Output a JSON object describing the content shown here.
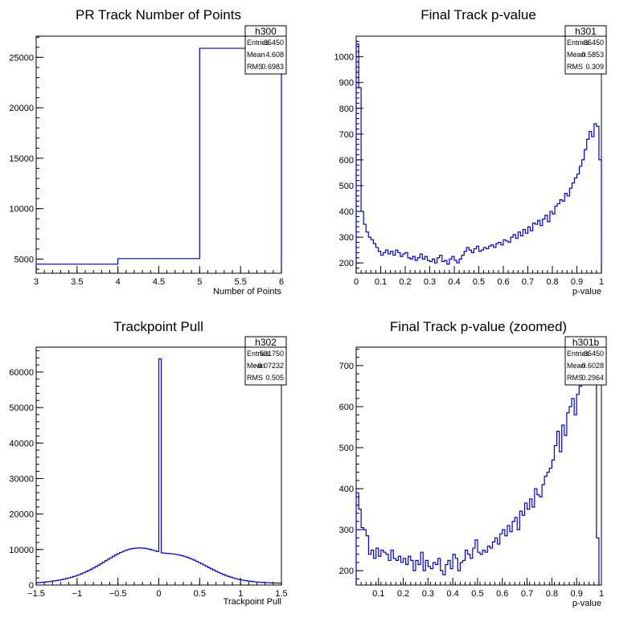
{
  "chart_data": [
    {
      "type": "histogram",
      "title": "PR Track Number of Points",
      "xlabel": "Number of Points",
      "ylabel": "",
      "xlim": [
        3,
        6
      ],
      "ylim": [
        3600,
        27100
      ],
      "xticks": [
        3,
        3.5,
        4,
        4.5,
        5,
        5.5,
        6
      ],
      "xtick_labels": [
        "3",
        "3.5",
        "4",
        "4.5",
        "5",
        "5.5",
        "6"
      ],
      "yticks": [
        5000,
        10000,
        15000,
        20000,
        25000
      ],
      "ytick_labels": [
        "5000",
        "10000",
        "15000",
        "20000",
        "25000"
      ],
      "bin_edges": [
        3,
        4,
        5,
        6
      ],
      "values": [
        4500,
        5050,
        25900
      ],
      "stats": {
        "name": "h300",
        "rows": [
          [
            "Entries",
            "35450"
          ],
          [
            "Mean",
            "4.608"
          ],
          [
            "RMS",
            "0.6983"
          ]
        ]
      }
    },
    {
      "type": "histogram",
      "title": "Final Track p-value",
      "xlabel": "p-value",
      "ylabel": "",
      "xlim": [
        0,
        1
      ],
      "ylim": [
        160,
        1080
      ],
      "xticks": [
        0,
        0.1,
        0.2,
        0.3,
        0.4,
        0.5,
        0.6,
        0.7,
        0.8,
        0.9,
        1
      ],
      "xtick_labels": [
        "0",
        "0.1",
        "0.2",
        "0.3",
        "0.4",
        "0.5",
        "0.6",
        "0.7",
        "0.8",
        "0.9",
        "1"
      ],
      "yticks": [
        200,
        300,
        400,
        500,
        600,
        700,
        800,
        900,
        1000
      ],
      "ytick_labels": [
        "200",
        "300",
        "400",
        "500",
        "600",
        "700",
        "800",
        "900",
        "1000"
      ],
      "bin_edges": [
        0,
        0.01
      ],
      "values": [
        1050,
        880,
        400,
        350,
        320,
        300,
        290,
        275,
        260,
        245,
        230,
        240,
        250,
        235,
        245,
        230,
        250,
        240,
        225,
        235,
        240,
        220,
        215,
        225,
        210,
        220,
        235,
        215,
        225,
        210,
        205,
        215,
        200,
        220,
        230,
        205,
        210,
        195,
        215,
        225,
        210,
        200,
        215,
        230,
        245,
        260,
        250,
        240,
        255,
        265,
        245,
        250,
        260,
        255,
        265,
        270,
        260,
        275,
        280,
        270,
        290,
        285,
        280,
        300,
        310,
        295,
        320,
        305,
        330,
        315,
        340,
        325,
        355,
        350,
        365,
        345,
        370,
        385,
        360,
        400,
        390,
        420,
        430,
        445,
        440,
        470,
        460,
        490,
        510,
        530,
        545,
        575,
        600,
        640,
        680,
        710,
        690,
        740,
        730,
        600
      ],
      "stats": {
        "name": "h301",
        "rows": [
          [
            "Entries",
            "35450"
          ],
          [
            "Mean",
            "0.5853"
          ],
          [
            "RMS",
            "0.309"
          ]
        ]
      }
    },
    {
      "type": "histogram",
      "title": "Trackpoint Pull",
      "xlabel": "Trackpoint Pull",
      "ylabel": "",
      "xlim": [
        -1.5,
        1.5
      ],
      "ylim": [
        0,
        67000
      ],
      "xticks": [
        -1.5,
        -1,
        -0.5,
        0,
        0.5,
        1,
        1.5
      ],
      "xtick_labels": [
        "−1.5",
        "−1",
        "−0.5",
        "0",
        "0.5",
        "1",
        "1.5"
      ],
      "yticks": [
        0,
        10000,
        20000,
        30000,
        40000,
        50000,
        60000
      ],
      "ytick_labels": [
        "0",
        "10000",
        "20000",
        "30000",
        "40000",
        "50000",
        "60000"
      ],
      "bin_edges": [
        -1.5,
        -1.47
      ],
      "values": [
        650,
        700,
        760,
        830,
        900,
        980,
        1070,
        1170,
        1280,
        1400,
        1530,
        1680,
        1840,
        2020,
        2210,
        2420,
        2650,
        2900,
        3170,
        3460,
        3770,
        4100,
        4450,
        4820,
        5200,
        5600,
        6010,
        6430,
        6850,
        7270,
        7680,
        8080,
        8460,
        8820,
        9150,
        9460,
        9730,
        9960,
        10150,
        10300,
        10390,
        10440,
        10440,
        10400,
        10320,
        10200,
        10040,
        9860,
        9660,
        9450,
        63700,
        9050,
        8980,
        8920,
        8860,
        8790,
        8700,
        8590,
        8450,
        8280,
        8080,
        7850,
        7590,
        7310,
        7010,
        6690,
        6350,
        6000,
        5640,
        5280,
        4920,
        4560,
        4210,
        3870,
        3550,
        3240,
        2950,
        2680,
        2430,
        2200,
        1990,
        1800,
        1630,
        1480,
        1350,
        1230,
        1130,
        1040,
        960,
        890,
        830,
        780,
        730,
        690,
        660,
        630,
        600,
        580,
        560,
        540
      ],
      "stats": {
        "name": "h302",
        "rows": [
          [
            "Entries",
            "531750"
          ],
          [
            "Mean",
            "−0.07232"
          ],
          [
            "RMS",
            "0.505"
          ]
        ]
      }
    },
    {
      "type": "histogram",
      "title": "Final Track p-value (zoomed)",
      "xlabel": "p-value",
      "ylabel": "",
      "xlim": [
        0.01,
        1
      ],
      "ylim": [
        165,
        745
      ],
      "xticks": [
        0.1,
        0.2,
        0.3,
        0.4,
        0.5,
        0.6,
        0.7,
        0.8,
        0.9,
        1
      ],
      "xtick_labels": [
        "0.1",
        "0.2",
        "0.3",
        "0.4",
        "0.5",
        "0.6",
        "0.7",
        "0.8",
        "0.9",
        "1"
      ],
      "yticks": [
        200,
        300,
        400,
        500,
        600,
        700
      ],
      "ytick_labels": [
        "200",
        "300",
        "400",
        "500",
        "600",
        "700"
      ],
      "bin_edges": [
        0.01,
        0.02
      ],
      "values": [
        390,
        350,
        305,
        300,
        285,
        240,
        250,
        230,
        255,
        235,
        250,
        245,
        240,
        225,
        250,
        230,
        225,
        235,
        220,
        230,
        215,
        235,
        225,
        200,
        225,
        215,
        245,
        200,
        225,
        210,
        205,
        220,
        215,
        230,
        200,
        190,
        215,
        225,
        205,
        240,
        230,
        200,
        220,
        225,
        250,
        240,
        230,
        255,
        275,
        245,
        240,
        250,
        245,
        260,
        255,
        270,
        280,
        265,
        290,
        300,
        285,
        310,
        295,
        320,
        330,
        300,
        345,
        335,
        365,
        350,
        375,
        355,
        400,
        385,
        380,
        410,
        430,
        440,
        450,
        470,
        505,
        540,
        490,
        555,
        530,
        585,
        600,
        620,
        580,
        630,
        650,
        700,
        680,
        720,
        705,
        690,
        725,
        280
      ],
      "stats": {
        "name": "h301b",
        "rows": [
          [
            "Entries",
            "35450"
          ],
          [
            "Mean",
            "0.6028"
          ],
          [
            "RMS",
            "0.2964"
          ]
        ]
      }
    }
  ],
  "colors": {
    "line": "#0000cc",
    "axis": "#000000",
    "background": "#ffffff"
  }
}
